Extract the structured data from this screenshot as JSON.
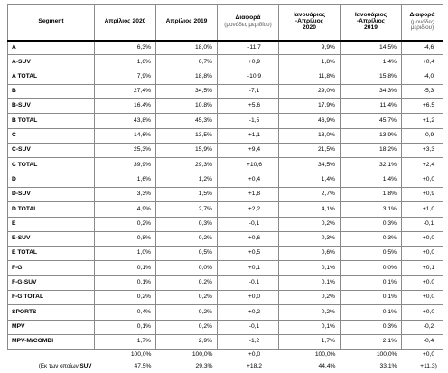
{
  "header": {
    "segment": "Segment",
    "apr2020": "Απρίλιος 2020",
    "apr2019": "Απρίλιος 2019",
    "diff1_title": "Διαφορά",
    "diff1_sub": "(μονάδες μεριδίου)",
    "janapr2020_l1": "Ιανουάριος",
    "janapr2020_l2": "-Απρίλιος",
    "janapr2020_l3": "2020",
    "janapr2019_l1": "Ιανουάριος",
    "janapr2019_l2": "-Απρίλιος",
    "janapr2019_l3": "2019",
    "diff2_title": "Διαφορά",
    "diff2_sub": "(μονάδες μεριδίου)"
  },
  "rows": [
    {
      "segment": "A",
      "apr2020": "6,3%",
      "apr2019": "18,0%",
      "diff1": "-11,7",
      "ja2020": "9,9%",
      "ja2019": "14,5%",
      "diff2": "-4,6"
    },
    {
      "segment": "A-SUV",
      "apr2020": "1,6%",
      "apr2019": "0,7%",
      "diff1": "+0,9",
      "ja2020": "1,8%",
      "ja2019": "1,4%",
      "diff2": "+0,4"
    },
    {
      "segment": "A TOTAL",
      "apr2020": "7,9%",
      "apr2019": "18,8%",
      "diff1": "-10,9",
      "ja2020": "11,8%",
      "ja2019": "15,8%",
      "diff2": "-4,0"
    },
    {
      "segment": "B",
      "apr2020": "27,4%",
      "apr2019": "34,5%",
      "diff1": "-7,1",
      "ja2020": "29,0%",
      "ja2019": "34,3%",
      "diff2": "-5,3"
    },
    {
      "segment": "B-SUV",
      "apr2020": "16,4%",
      "apr2019": "10,8%",
      "diff1": "+5,6",
      "ja2020": "17,9%",
      "ja2019": "11,4%",
      "diff2": "+6,5"
    },
    {
      "segment": "B TOTAL",
      "apr2020": "43,8%",
      "apr2019": "45,3%",
      "diff1": "-1,5",
      "ja2020": "46,9%",
      "ja2019": "45,7%",
      "diff2": "+1,2"
    },
    {
      "segment": "C",
      "apr2020": "14,6%",
      "apr2019": "13,5%",
      "diff1": "+1,1",
      "ja2020": "13,0%",
      "ja2019": "13,9%",
      "diff2": "-0,9"
    },
    {
      "segment": "C-SUV",
      "apr2020": "25,3%",
      "apr2019": "15,9%",
      "diff1": "+9,4",
      "ja2020": "21,5%",
      "ja2019": "18,2%",
      "diff2": "+3,3"
    },
    {
      "segment": "C TOTAL",
      "apr2020": "39,9%",
      "apr2019": "29,3%",
      "diff1": "+10,6",
      "ja2020": "34,5%",
      "ja2019": "32,1%",
      "diff2": "+2,4"
    },
    {
      "segment": "D",
      "apr2020": "1,6%",
      "apr2019": "1,2%",
      "diff1": "+0,4",
      "ja2020": "1,4%",
      "ja2019": "1,4%",
      "diff2": "+0,0"
    },
    {
      "segment": "D-SUV",
      "apr2020": "3,3%",
      "apr2019": "1,5%",
      "diff1": "+1,8",
      "ja2020": "2,7%",
      "ja2019": "1,8%",
      "diff2": "+0,9"
    },
    {
      "segment": "D TOTAL",
      "apr2020": "4,9%",
      "apr2019": "2,7%",
      "diff1": "+2,2",
      "ja2020": "4,1%",
      "ja2019": "3,1%",
      "diff2": "+1,0"
    },
    {
      "segment": "E",
      "apr2020": "0,2%",
      "apr2019": "0,3%",
      "diff1": "-0,1",
      "ja2020": "0,2%",
      "ja2019": "0,3%",
      "diff2": "-0,1"
    },
    {
      "segment": "E-SUV",
      "apr2020": "0,8%",
      "apr2019": "0,2%",
      "diff1": "+0,6",
      "ja2020": "0,3%",
      "ja2019": "0,3%",
      "diff2": "+0,0"
    },
    {
      "segment": "E TOTAL",
      "apr2020": "1,0%",
      "apr2019": "0,5%",
      "diff1": "+0,5",
      "ja2020": "0,6%",
      "ja2019": "0,5%",
      "diff2": "+0,0"
    },
    {
      "segment": "F-G",
      "apr2020": "0,1%",
      "apr2019": "0,0%",
      "diff1": "+0,1",
      "ja2020": "0,1%",
      "ja2019": "0,0%",
      "diff2": "+0,1"
    },
    {
      "segment": "F-G-SUV",
      "apr2020": "0,1%",
      "apr2019": "0,2%",
      "diff1": "-0,1",
      "ja2020": "0,1%",
      "ja2019": "0,1%",
      "diff2": "+0,0"
    },
    {
      "segment": "F-G TOTAL",
      "apr2020": "0,2%",
      "apr2019": "0,2%",
      "diff1": "+0,0",
      "ja2020": "0,2%",
      "ja2019": "0,1%",
      "diff2": "+0,0"
    },
    {
      "segment": "SPORTS",
      "apr2020": "0,4%",
      "apr2019": "0,2%",
      "diff1": "+0,2",
      "ja2020": "0,2%",
      "ja2019": "0,1%",
      "diff2": "+0,0"
    },
    {
      "segment": "MPV",
      "apr2020": "0,1%",
      "apr2019": "0,2%",
      "diff1": "-0,1",
      "ja2020": "0,1%",
      "ja2019": "0,3%",
      "diff2": "-0,2"
    },
    {
      "segment": "MPV-M/COMBI",
      "apr2020": "1,7%",
      "apr2019": "2,9%",
      "diff1": "-1,2",
      "ja2020": "1,7%",
      "ja2019": "2,1%",
      "diff2": "-0,4"
    }
  ],
  "total_row": {
    "apr2020": "100,0%",
    "apr2019": "100,0%",
    "diff1": "+0,0",
    "ja2020": "100,0%",
    "ja2019": "100,0%",
    "diff2": "+0,0"
  },
  "suv_row": {
    "label_prefix": "(Εκ των οποίων",
    "label_suv": "SUV",
    "apr2020": "47,5%",
    "apr2019": "29,3%",
    "diff1": "+18,2",
    "ja2020": "44,4%",
    "ja2019": "33,1%",
    "diff2": "+11,3)"
  }
}
